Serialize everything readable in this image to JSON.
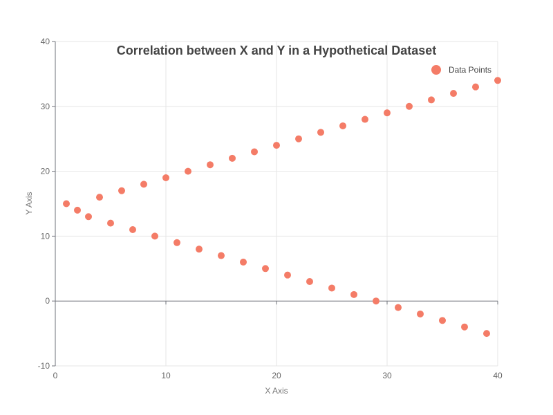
{
  "chart_data": {
    "type": "scatter",
    "title": "Correlation between X and Y in a Hypothetical Dataset",
    "xlabel": "X Axis",
    "ylabel": "Y Axis",
    "xlim": [
      0,
      40
    ],
    "ylim": [
      -10,
      40
    ],
    "x_ticks": [
      0,
      10,
      20,
      30,
      40
    ],
    "y_ticks": [
      -10,
      0,
      10,
      20,
      30,
      40
    ],
    "grid": true,
    "legend_position": "top-right",
    "marker_color": "#f47c67",
    "series": [
      {
        "name": "Data Points",
        "points": [
          [
            1,
            15
          ],
          [
            2,
            14
          ],
          [
            3,
            13
          ],
          [
            4,
            16
          ],
          [
            5,
            12
          ],
          [
            6,
            17
          ],
          [
            7,
            11
          ],
          [
            8,
            18
          ],
          [
            9,
            10
          ],
          [
            10,
            19
          ],
          [
            11,
            9
          ],
          [
            12,
            20
          ],
          [
            13,
            8
          ],
          [
            14,
            21
          ],
          [
            15,
            7
          ],
          [
            16,
            22
          ],
          [
            17,
            6
          ],
          [
            18,
            23
          ],
          [
            19,
            5
          ],
          [
            20,
            24
          ],
          [
            21,
            4
          ],
          [
            22,
            25
          ],
          [
            23,
            3
          ],
          [
            24,
            26
          ],
          [
            25,
            2
          ],
          [
            26,
            27
          ],
          [
            27,
            1
          ],
          [
            28,
            28
          ],
          [
            29,
            0
          ],
          [
            30,
            29
          ],
          [
            31,
            -1
          ],
          [
            32,
            30
          ],
          [
            33,
            -2
          ],
          [
            34,
            31
          ],
          [
            35,
            -3
          ],
          [
            36,
            32
          ],
          [
            37,
            -4
          ],
          [
            38,
            33
          ],
          [
            39,
            -5
          ],
          [
            40,
            34
          ]
        ]
      }
    ]
  }
}
